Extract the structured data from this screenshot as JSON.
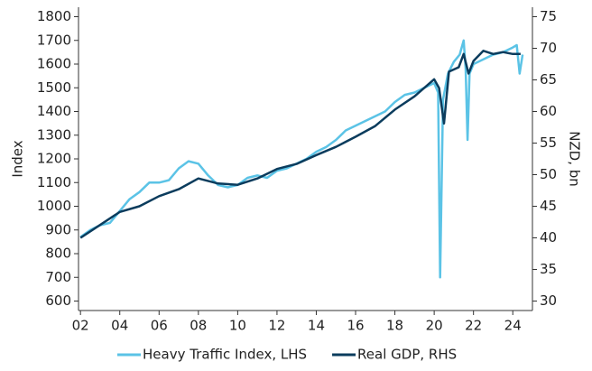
{
  "chart_data": {
    "type": "line",
    "y_label": "Index",
    "y2_label": "NZD, bn",
    "xlim": [
      2001.9,
      2025
    ],
    "xticks": [
      {
        "value": 2002,
        "label": "02"
      },
      {
        "value": 2004,
        "label": "04"
      },
      {
        "value": 2006,
        "label": "06"
      },
      {
        "value": 2008,
        "label": "08"
      },
      {
        "value": 2010,
        "label": "10"
      },
      {
        "value": 2012,
        "label": "12"
      },
      {
        "value": 2014,
        "label": "14"
      },
      {
        "value": 2016,
        "label": "16"
      },
      {
        "value": 2018,
        "label": "18"
      },
      {
        "value": 2020,
        "label": "20"
      },
      {
        "value": 2022,
        "label": "22"
      },
      {
        "value": 2024,
        "label": "24"
      }
    ],
    "ylim": [
      560,
      1840
    ],
    "yticks": [
      600,
      700,
      800,
      900,
      1000,
      1100,
      1200,
      1300,
      1400,
      1500,
      1600,
      1700,
      1800
    ],
    "y2lim": [
      28.5,
      76.5
    ],
    "y2ticks": [
      30,
      35,
      40,
      45,
      50,
      55,
      60,
      65,
      70,
      75
    ],
    "legend": "bottom",
    "series": [
      {
        "name": "Heavy Traffic Index, LHS",
        "color": "#5bc3e6",
        "x": [
          2002.0,
          2002.5,
          2003.0,
          2003.5,
          2004.0,
          2004.5,
          2005.0,
          2005.5,
          2006.0,
          2006.5,
          2007.0,
          2007.5,
          2008.0,
          2008.5,
          2009.0,
          2009.5,
          2010.0,
          2010.5,
          2011.0,
          2011.5,
          2012.0,
          2012.5,
          2013.0,
          2013.5,
          2014.0,
          2014.5,
          2015.0,
          2015.5,
          2016.0,
          2016.5,
          2017.0,
          2017.5,
          2018.0,
          2018.5,
          2019.0,
          2019.5,
          2020.0,
          2020.2,
          2020.3,
          2020.45,
          2020.7,
          2021.0,
          2021.3,
          2021.5,
          2021.6,
          2021.7,
          2021.8,
          2022.0,
          2022.5,
          2023.0,
          2023.5,
          2024.0,
          2024.2,
          2024.35,
          2024.5
        ],
        "values": [
          870,
          900,
          920,
          930,
          980,
          1030,
          1060,
          1100,
          1100,
          1110,
          1160,
          1190,
          1180,
          1130,
          1090,
          1080,
          1090,
          1120,
          1130,
          1120,
          1150,
          1160,
          1180,
          1200,
          1230,
          1250,
          1280,
          1320,
          1340,
          1360,
          1380,
          1400,
          1440,
          1470,
          1480,
          1500,
          1520,
          1480,
          700,
          1450,
          1560,
          1610,
          1640,
          1700,
          1580,
          1280,
          1560,
          1600,
          1620,
          1640,
          1650,
          1670,
          1680,
          1560,
          1640
        ]
      },
      {
        "name": "Real GDP, RHS",
        "color": "#0b3c5d",
        "axis": "y2",
        "x": [
          2002.0,
          2004.0,
          2005.0,
          2006.0,
          2007.0,
          2008.0,
          2009.0,
          2010.0,
          2011.0,
          2012.0,
          2013.0,
          2014.0,
          2015.0,
          2016.0,
          2017.0,
          2018.0,
          2019.0,
          2020.0,
          2020.25,
          2020.5,
          2020.75,
          2021.25,
          2021.5,
          2021.75,
          2022.0,
          2022.5,
          2023.0,
          2023.5,
          2024.0,
          2024.4
        ],
        "values": [
          40,
          44.1,
          45,
          46.6,
          47.7,
          49.4,
          48.6,
          48.4,
          49.4,
          50.9,
          51.7,
          53.1,
          54.4,
          56,
          57.7,
          60.3,
          62.4,
          65.1,
          63.7,
          58.1,
          66.3,
          67,
          69.1,
          66,
          68,
          69.6,
          69.1,
          69.4,
          69.1,
          69.1
        ]
      }
    ]
  }
}
